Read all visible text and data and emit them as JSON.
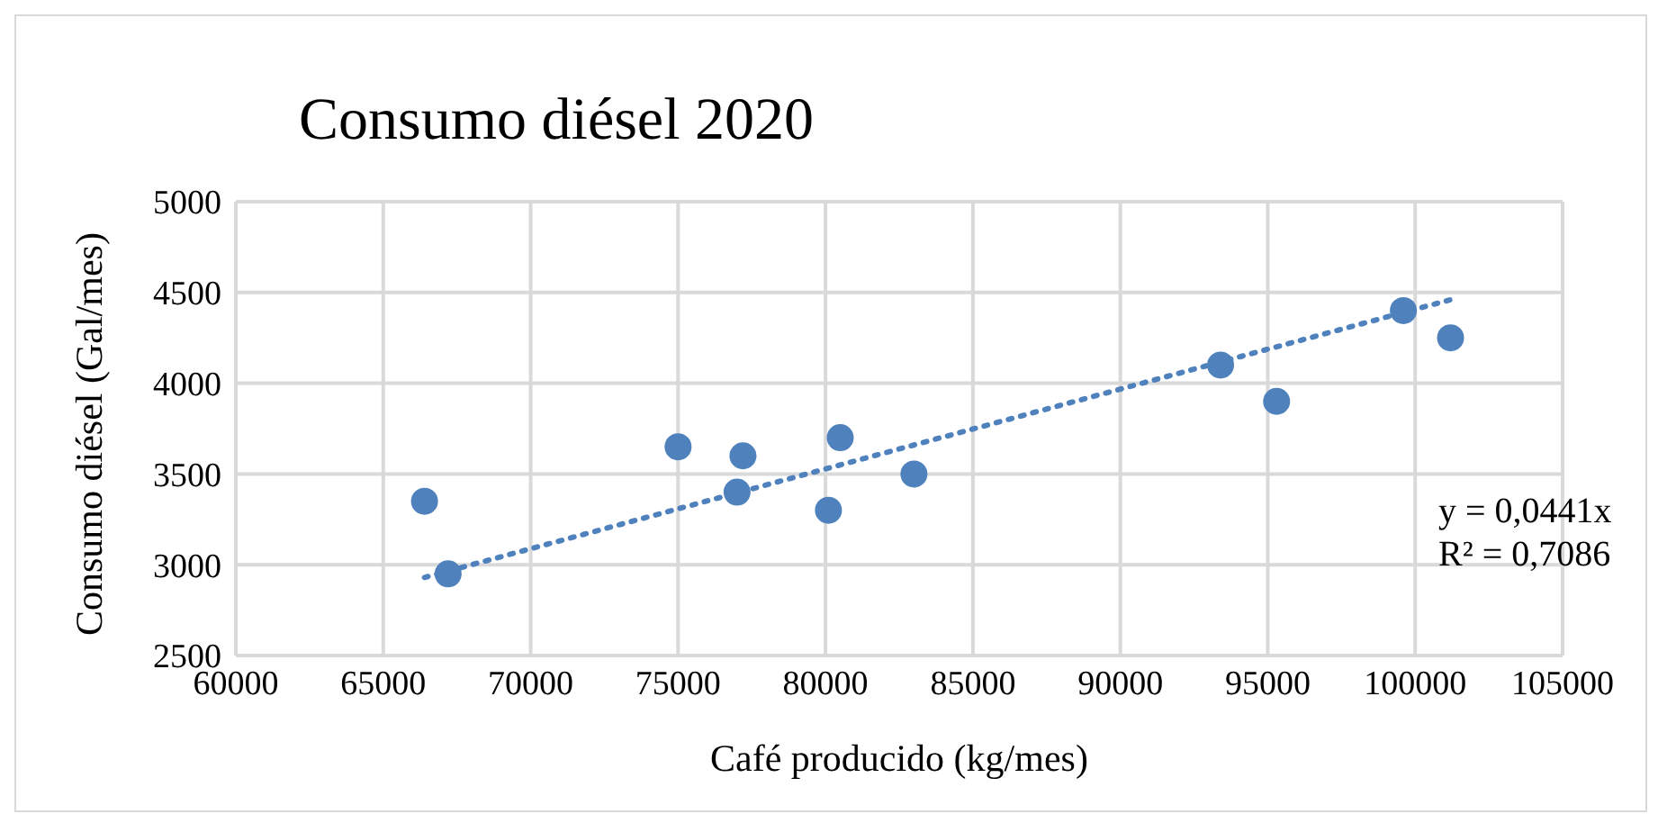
{
  "chart_data": {
    "type": "scatter",
    "title": "Consumo diésel 2020",
    "xlabel": "Café producido (kg/mes)",
    "ylabel": "Consumo diésel (Gal/mes)",
    "series": [
      {
        "color": "#4f81bd",
        "marker": "circle",
        "x": [
          66400,
          67200,
          75000,
          77000,
          77200,
          80100,
          80500,
          83000,
          93400,
          95300,
          99600,
          101200
        ],
        "values": [
          3350,
          2950,
          3650,
          3400,
          3600,
          3300,
          3700,
          3500,
          4100,
          3900,
          4400,
          4250
        ]
      },
      {
        "type": "line",
        "color": "#4f81bd",
        "marker": "none",
        "line_style": "dotted",
        "x": [
          66400,
          101200
        ],
        "values": [
          2930,
          4460
        ]
      }
    ],
    "xlim": [
      60000,
      105000
    ],
    "xticks": [
      60000,
      65000,
      70000,
      75000,
      80000,
      85000,
      90000,
      95000,
      100000,
      105000
    ],
    "ylim": [
      2500,
      5000
    ],
    "yticks": [
      2500,
      3000,
      3500,
      4000,
      4500,
      5000
    ],
    "grid": true,
    "legend": false,
    "annotations": [
      "y = 0,0441x",
      "R² = 0,7086"
    ]
  }
}
